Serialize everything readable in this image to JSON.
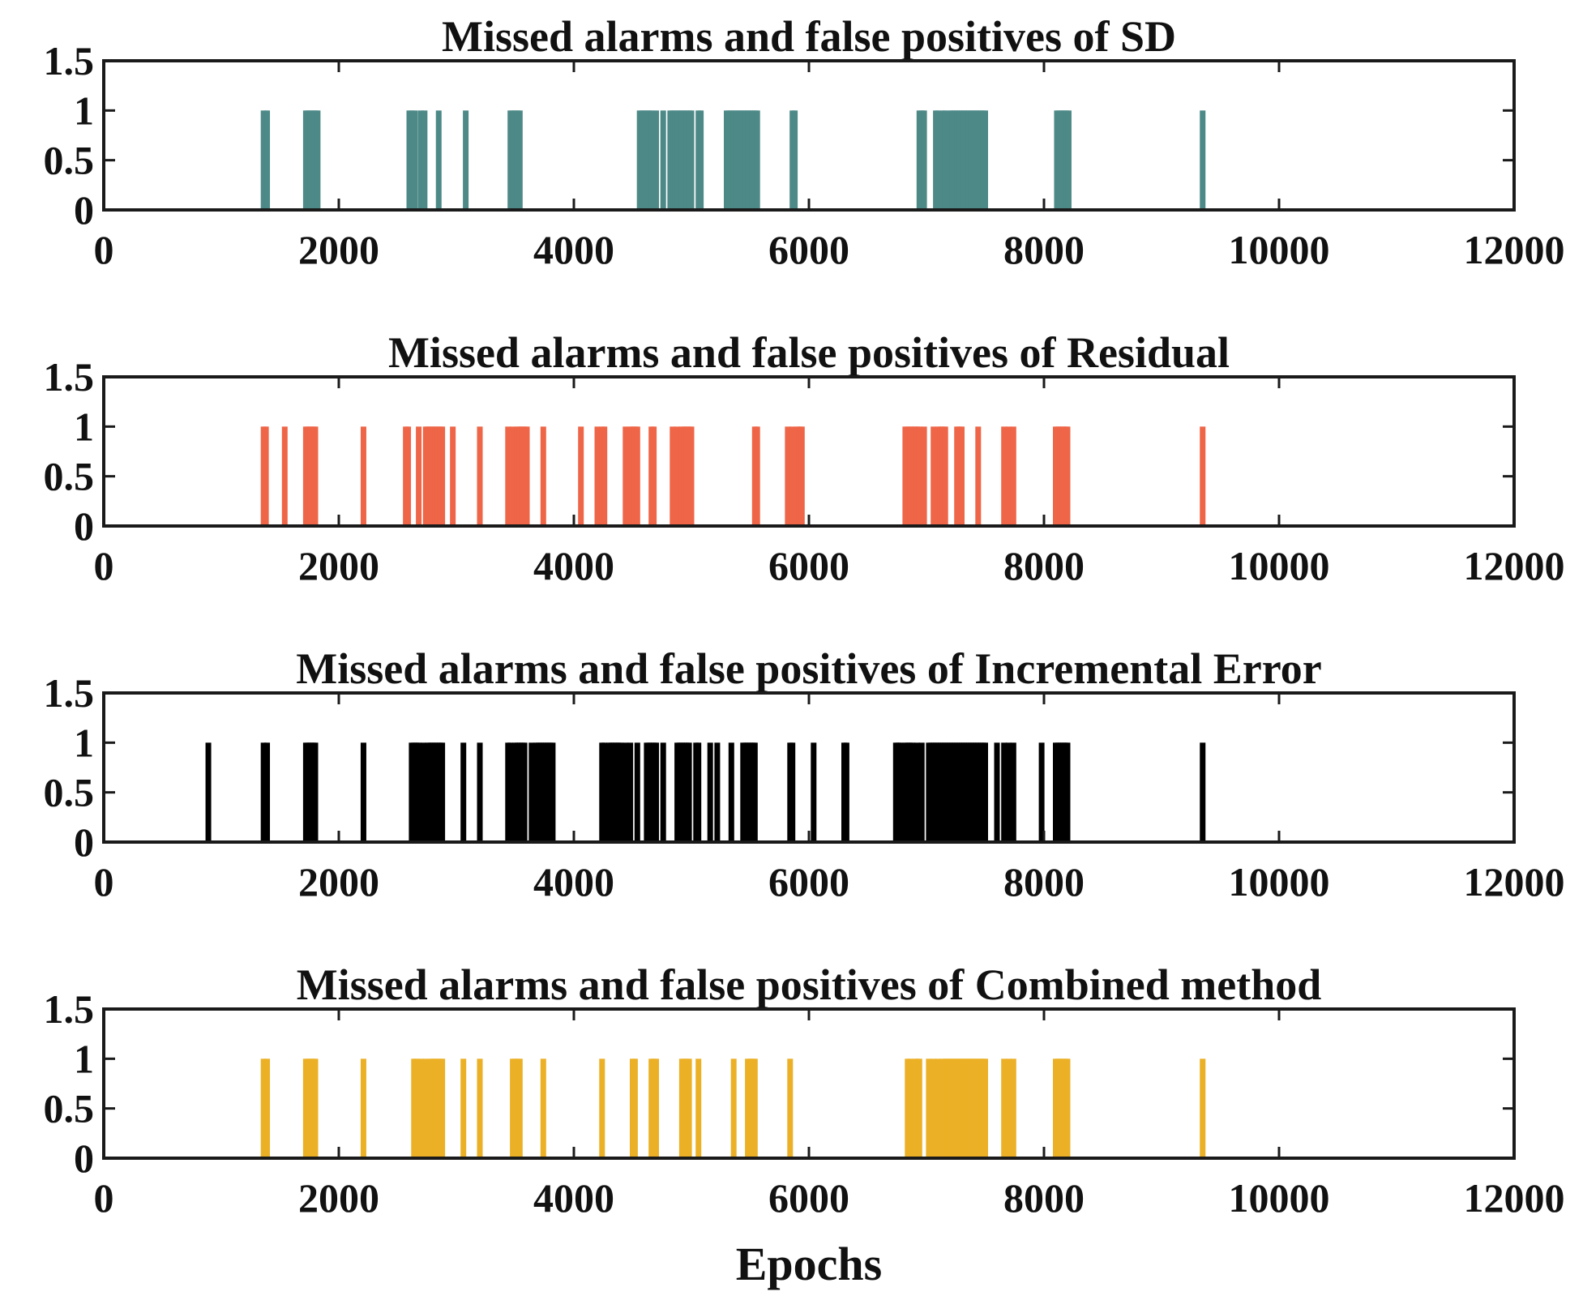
{
  "chart_data": [
    {
      "type": "bar",
      "title": "Missed alarms and false positives of SD",
      "xlabel": "",
      "ylabel": "",
      "color": "#4d8987",
      "xlim": [
        0,
        12000
      ],
      "ylim": [
        0,
        1.5
      ],
      "xticks": [
        "0",
        "2000",
        "4000",
        "6000",
        "8000",
        "10000",
        "12000"
      ],
      "yticks": [
        "0",
        "0.5",
        "1",
        "1.5"
      ],
      "baseline_end": 10250,
      "events": [
        1360,
        1390,
        1720,
        1740,
        1760,
        1780,
        1800,
        1820,
        2600,
        2620,
        2650,
        2700,
        2730,
        2850,
        3080,
        3460,
        3480,
        3500,
        3520,
        3540,
        4560,
        4580,
        4600,
        4620,
        4640,
        4660,
        4700,
        4760,
        4820,
        4840,
        4860,
        4880,
        4900,
        4920,
        4940,
        4960,
        4980,
        5000,
        5060,
        5080,
        5300,
        5320,
        5340,
        5360,
        5380,
        5400,
        5420,
        5440,
        5460,
        5480,
        5500,
        5520,
        5540,
        5560,
        5860,
        5880,
        6940,
        6960,
        6980,
        7080,
        7100,
        7140,
        7160,
        7200,
        7220,
        7240,
        7260,
        7280,
        7300,
        7320,
        7340,
        7360,
        7380,
        7400,
        7420,
        7440,
        7460,
        7480,
        7500,
        8110,
        8130,
        8150,
        8170,
        8190,
        8210,
        9350
      ]
    },
    {
      "type": "bar",
      "title": "Missed alarms and false positives of Residual",
      "xlabel": "",
      "ylabel": "",
      "color": "#ee6547",
      "xlim": [
        0,
        12000
      ],
      "ylim": [
        0,
        1.5
      ],
      "xticks": [
        "0",
        "2000",
        "4000",
        "6000",
        "8000",
        "10000",
        "12000"
      ],
      "yticks": [
        "0",
        "0.5",
        "1",
        "1.5"
      ],
      "baseline_end": 10250,
      "events": [
        1360,
        1380,
        1540,
        1720,
        1740,
        1760,
        1780,
        1800,
        2210,
        2570,
        2590,
        2680,
        2740,
        2760,
        2780,
        2800,
        2820,
        2840,
        2860,
        2880,
        2970,
        3200,
        3440,
        3480,
        3520,
        3540,
        3560,
        3580,
        3600,
        3740,
        4060,
        4200,
        4240,
        4260,
        4440,
        4480,
        4500,
        4520,
        4540,
        4660,
        4680,
        4840,
        4880,
        4920,
        4940,
        4960,
        4980,
        5000,
        5540,
        5560,
        5820,
        5860,
        5900,
        5920,
        5940,
        6820,
        6840,
        6860,
        6880,
        6900,
        6920,
        6940,
        6980,
        7060,
        7100,
        7120,
        7140,
        7160,
        7260,
        7280,
        7300,
        7440,
        7660,
        7700,
        7740,
        8100,
        8120,
        8140,
        8160,
        8180,
        8200,
        9350
      ]
    },
    {
      "type": "bar",
      "title": "Missed alarms and false positives of Incremental Error",
      "xlabel": "",
      "ylabel": "",
      "color": "#000000",
      "xlim": [
        0,
        12000
      ],
      "ylim": [
        0,
        1.5
      ],
      "xticks": [
        "0",
        "2000",
        "4000",
        "6000",
        "8000",
        "10000",
        "12000"
      ],
      "yticks": [
        "0",
        "0.5",
        "1",
        "1.5"
      ],
      "baseline_end": 10250,
      "events": [
        890,
        1360,
        1390,
        1720,
        1740,
        1760,
        1780,
        1800,
        2210,
        2620,
        2640,
        2660,
        2680,
        2720,
        2760,
        2780,
        2800,
        2820,
        2840,
        2860,
        2880,
        3060,
        3200,
        3440,
        3460,
        3500,
        3520,
        3540,
        3560,
        3580,
        3640,
        3680,
        3700,
        3720,
        3740,
        3760,
        3780,
        3800,
        3820,
        4240,
        4260,
        4300,
        4320,
        4340,
        4360,
        4380,
        4400,
        4440,
        4480,
        4540,
        4620,
        4640,
        4660,
        4680,
        4700,
        4760,
        4880,
        4900,
        4920,
        4940,
        4960,
        4980,
        5040,
        5060,
        5160,
        5220,
        5340,
        5440,
        5460,
        5480,
        5500,
        5520,
        5540,
        5840,
        5860,
        6040,
        6300,
        6320,
        6740,
        6760,
        6780,
        6820,
        6840,
        6860,
        6880,
        6920,
        6960,
        7020,
        7040,
        7060,
        7080,
        7100,
        7120,
        7140,
        7160,
        7180,
        7200,
        7220,
        7240,
        7260,
        7280,
        7300,
        7320,
        7340,
        7360,
        7380,
        7400,
        7420,
        7440,
        7460,
        7480,
        7500,
        7600,
        7660,
        7700,
        7740,
        7980,
        8100,
        8120,
        8140,
        8160,
        8180,
        8200,
        9350
      ]
    },
    {
      "type": "bar",
      "title": "Missed alarms and false positives of Combined method",
      "xlabel": "Epochs",
      "ylabel": "",
      "color": "#ebb025",
      "xlim": [
        0,
        12000
      ],
      "ylim": [
        0,
        1.5
      ],
      "xticks": [
        "0",
        "2000",
        "4000",
        "6000",
        "8000",
        "10000",
        "12000"
      ],
      "yticks": [
        "0",
        "0.5",
        "1",
        "1.5"
      ],
      "baseline_end": 10250,
      "events": [
        1360,
        1390,
        1720,
        1740,
        1760,
        1780,
        1800,
        2210,
        2640,
        2660,
        2700,
        2740,
        2780,
        2800,
        2820,
        2840,
        2860,
        2880,
        3060,
        3200,
        3480,
        3500,
        3520,
        3540,
        3740,
        4240,
        4500,
        4520,
        4660,
        4680,
        4700,
        4920,
        4940,
        4960,
        4980,
        5060,
        5360,
        5480,
        5500,
        5520,
        5540,
        5840,
        6840,
        6860,
        6900,
        6920,
        6940,
        7020,
        7060,
        7100,
        7140,
        7160,
        7180,
        7200,
        7220,
        7240,
        7260,
        7280,
        7300,
        7320,
        7340,
        7360,
        7380,
        7400,
        7420,
        7440,
        7460,
        7480,
        7500,
        7660,
        7700,
        7740,
        8100,
        8120,
        8140,
        8160,
        8180,
        8200,
        9350
      ]
    }
  ]
}
